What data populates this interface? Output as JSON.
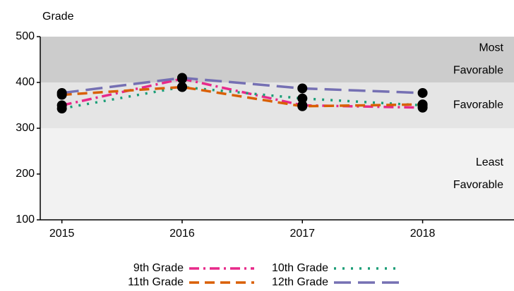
{
  "chart_data": {
    "type": "line",
    "y_title": "Grade",
    "x": [
      2015,
      2016,
      2017,
      2018
    ],
    "xlim": [
      2014.82,
      2018.76
    ],
    "xticks": [
      2015,
      2016,
      2017,
      2018
    ],
    "ylim": [
      100,
      500
    ],
    "yticks": [
      100,
      200,
      300,
      400,
      500
    ],
    "bands": [
      {
        "range": [
          100,
          300
        ],
        "color": "#f2f2f2",
        "label": [
          "Least",
          "Favorable"
        ]
      },
      {
        "range": [
          300,
          400
        ],
        "color": "#e5e5e5",
        "label": [
          "Favorable"
        ]
      },
      {
        "range": [
          400,
          500
        ],
        "color": "#cccccc",
        "label": [
          "Most",
          "Favorable"
        ]
      }
    ],
    "point_color": "#000000",
    "series": [
      {
        "name": "9th Grade",
        "color": "#e7298a",
        "dash": "dashdot",
        "values": [
          350,
          408,
          350,
          345
        ]
      },
      {
        "name": "10th Grade",
        "color": "#1b9e77",
        "dash": "dotted",
        "values": [
          343,
          390,
          365,
          350
        ]
      },
      {
        "name": "11th Grade",
        "color": "#d95f02",
        "dash": "dashed",
        "values": [
          373,
          390,
          348,
          352
        ]
      },
      {
        "name": "12th Grade",
        "color": "#7570b3",
        "dash": "longdash",
        "values": [
          377,
          410,
          387,
          377
        ]
      }
    ]
  }
}
